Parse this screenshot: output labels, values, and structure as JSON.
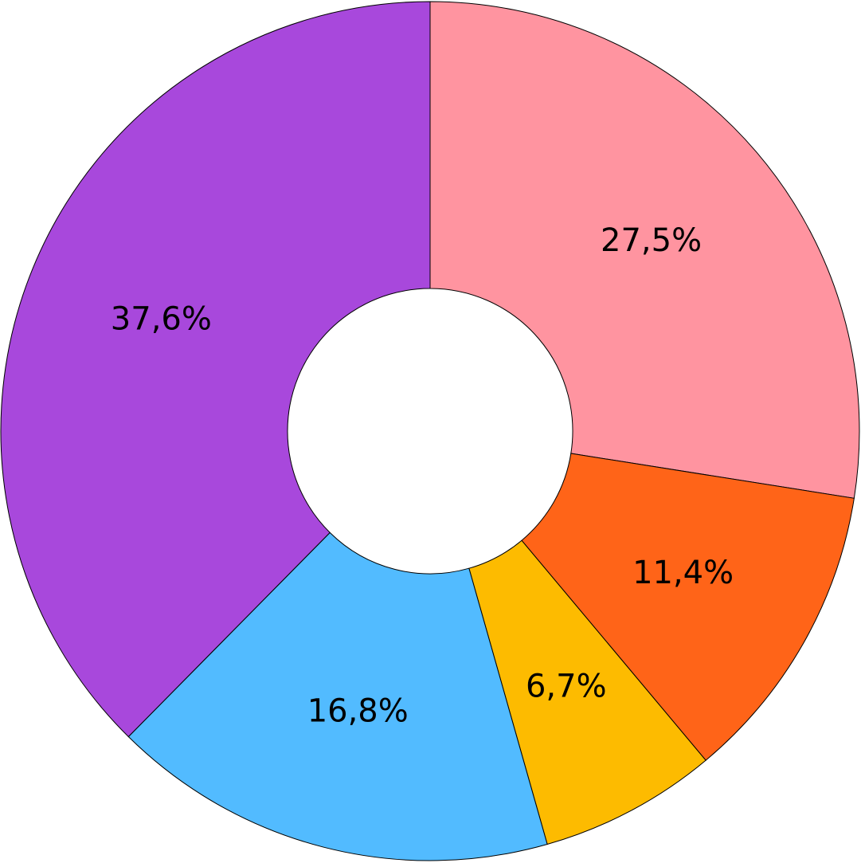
{
  "chart_data": {
    "type": "pie",
    "values": [
      27.5,
      11.4,
      6.7,
      16.8,
      37.6
    ],
    "value_labels": [
      "27,5%",
      "11,4%",
      "6,7%",
      "16,8%",
      "37,6%"
    ],
    "colors": [
      "#ff94a0",
      "#ff6418",
      "#fdbb00",
      "#52bbff",
      "#a848dc"
    ]
  }
}
